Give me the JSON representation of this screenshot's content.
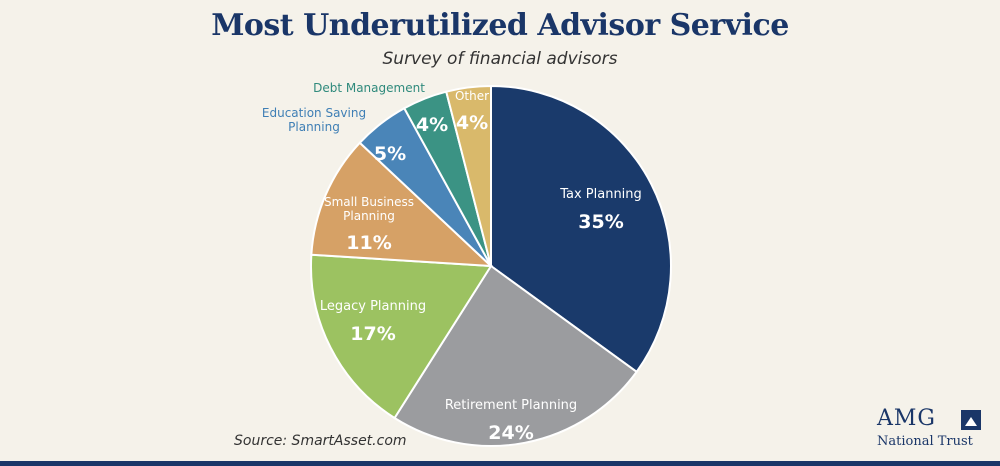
{
  "chart_data": {
    "type": "pie",
    "title": "Most Underutilized Advisor Service",
    "subtitle": "Survey of financial advisors",
    "slices": [
      {
        "label": "Tax Planning",
        "value": 35,
        "display": "35%",
        "color": "#1a3a6b",
        "label_lines": [
          "Tax Planning"
        ]
      },
      {
        "label": "Retirement Planning",
        "value": 24,
        "display": "24%",
        "color": "#9b9c9f",
        "label_lines": [
          "Retirement Planning"
        ]
      },
      {
        "label": "Legacy Planning",
        "value": 17,
        "display": "17%",
        "color": "#9cc261",
        "label_lines": [
          "Legacy Planning"
        ]
      },
      {
        "label": "Small Business Planning",
        "value": 11,
        "display": "11%",
        "color": "#d6a166",
        "label_lines": [
          "Small Business",
          "Planning"
        ]
      },
      {
        "label": "Education Saving Planning",
        "value": 5,
        "display": "5%",
        "color": "#4a85b8",
        "label_lines": [
          "Education Saving",
          "Planning"
        ]
      },
      {
        "label": "Debt Management",
        "value": 4,
        "display": "4%",
        "color": "#3b9384",
        "label_lines": [
          "Debt Management"
        ]
      },
      {
        "label": "Other",
        "value": 4,
        "display": "4%",
        "color": "#d9b96b",
        "label_lines": [
          "Other"
        ]
      }
    ]
  },
  "footer": {
    "source": "Source: SmartAsset.com",
    "logo_text": "AMG",
    "logo_subtext": "National Trust"
  },
  "colors": {
    "background": "#f5f2ea",
    "brand": "#1a3668"
  }
}
